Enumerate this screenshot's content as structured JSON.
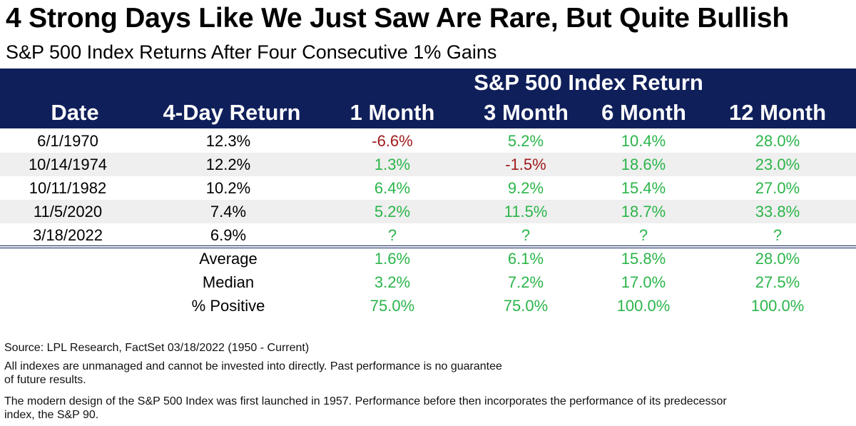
{
  "title": "4 Strong Days Like We Just Saw Are Rare, But Quite Bullish",
  "subtitle": "S&P 500 Index Returns After Four Consecutive 1% Gains",
  "header": {
    "group_label": "S&P 500 Index Return",
    "columns": [
      "Date",
      "4-Day Return",
      "1 Month",
      "3 Month",
      "6 Month",
      "12 Month"
    ]
  },
  "colors": {
    "header_bg": "#0f1f5a",
    "positive": "#2bb54a",
    "negative": "#9e1a1a",
    "band": "#efefef"
  },
  "chart_data": {
    "type": "table",
    "title": "4 Strong Days Like We Just Saw Are Rare, But Quite Bullish",
    "subtitle": "S&P 500 Index Returns After Four Consecutive 1% Gains",
    "columns": [
      "Date",
      "4-Day Return",
      "1 Month",
      "3 Month",
      "6 Month",
      "12 Month"
    ],
    "rows": [
      [
        "6/1/1970",
        "12.3%",
        "-6.6%",
        "5.2%",
        "10.4%",
        "28.0%"
      ],
      [
        "10/14/1974",
        "12.2%",
        "1.3%",
        "-1.5%",
        "18.6%",
        "23.0%"
      ],
      [
        "10/11/1982",
        "10.2%",
        "6.4%",
        "9.2%",
        "15.4%",
        "27.0%"
      ],
      [
        "11/5/2020",
        "7.4%",
        "5.2%",
        "11.5%",
        "18.7%",
        "33.8%"
      ],
      [
        "3/18/2022",
        "6.9%",
        "?",
        "?",
        "?",
        "?"
      ]
    ],
    "summary": [
      [
        "Average",
        "1.6%",
        "6.1%",
        "15.8%",
        "28.0%"
      ],
      [
        "Median",
        "3.2%",
        "7.2%",
        "17.0%",
        "27.5%"
      ],
      [
        "% Positive",
        "75.0%",
        "75.0%",
        "100.0%",
        "100.0%"
      ]
    ]
  },
  "footnotes": [
    "Source: LPL Research, FactSet 03/18/2022 (1950 - Current)",
    "All indexes are unmanaged and cannot be invested into directly. Past performance is no guarantee",
    "of future results.",
    "The modern design of the S&P 500 Index was first launched in 1957. Performance before then incorporates the performance of its predecessor",
    "index, the S&P 90."
  ]
}
